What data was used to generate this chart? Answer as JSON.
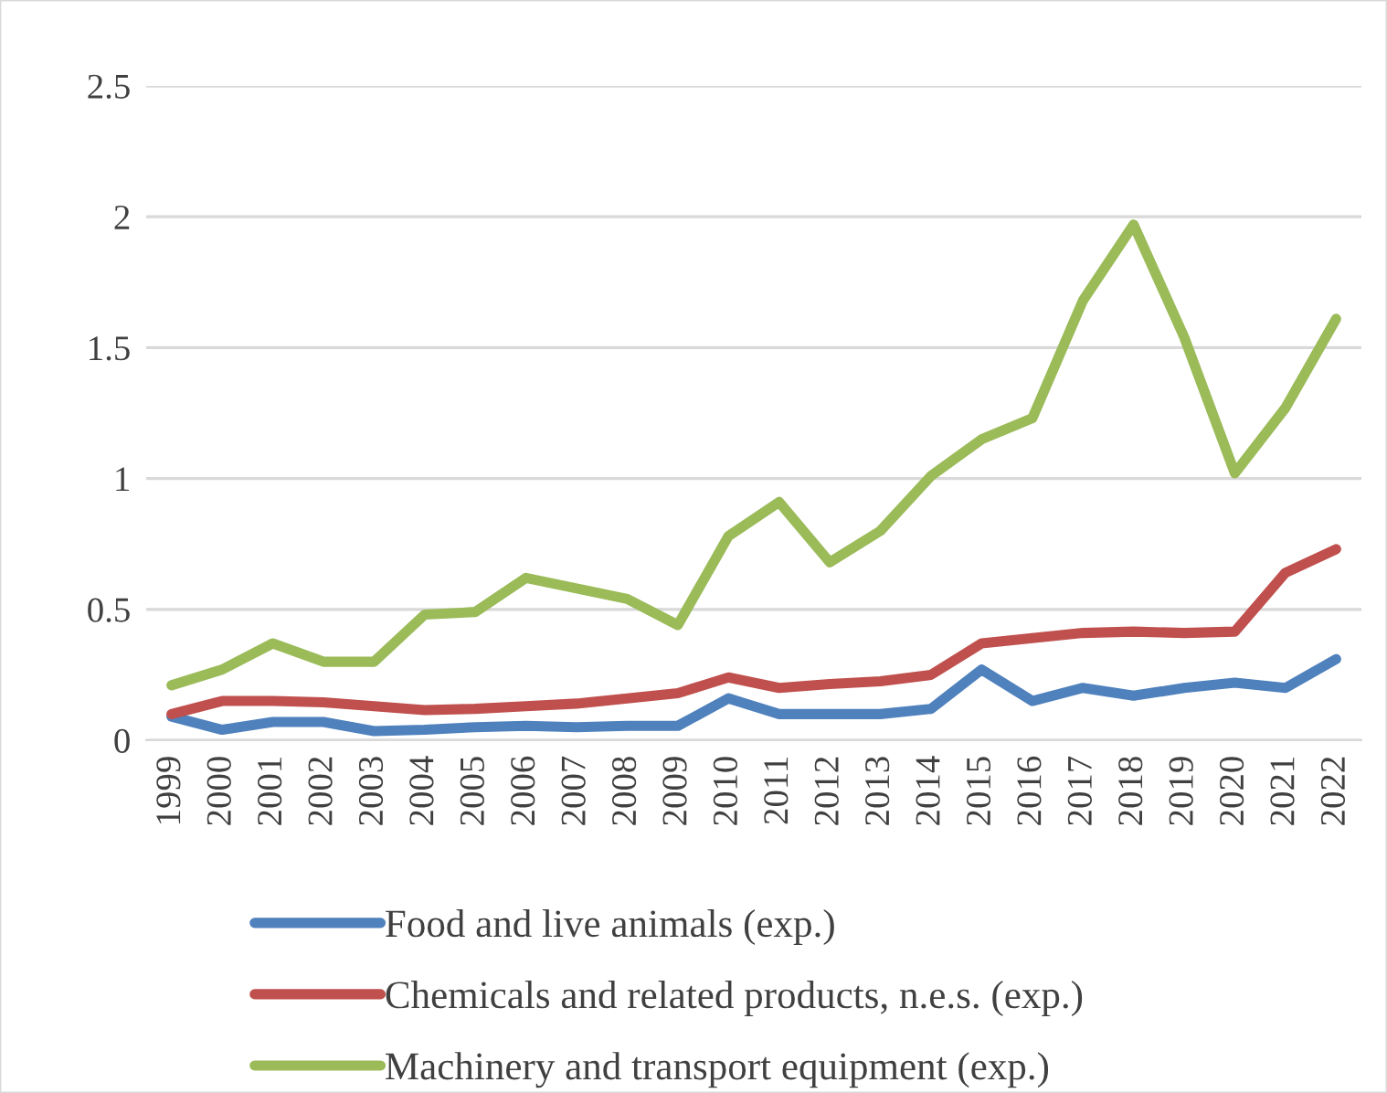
{
  "chart_data": {
    "type": "line",
    "categories": [
      "1999",
      "2000",
      "2001",
      "2002",
      "2003",
      "2004",
      "2005",
      "2006",
      "2007",
      "2008",
      "2009",
      "2010",
      "2011",
      "2012",
      "2013",
      "2014",
      "2015",
      "2016",
      "2017",
      "2018",
      "2019",
      "2020",
      "2021",
      "2022"
    ],
    "series": [
      {
        "name": "Food and live animals (exp.)",
        "color": "#4f81bd",
        "values": [
          0.09,
          0.04,
          0.07,
          0.07,
          0.035,
          0.04,
          0.05,
          0.055,
          0.05,
          0.055,
          0.055,
          0.16,
          0.1,
          0.1,
          0.1,
          0.12,
          0.27,
          0.15,
          0.2,
          0.17,
          0.2,
          0.22,
          0.2,
          0.31
        ]
      },
      {
        "name": "Chemicals and related products, n.e.s. (exp.)",
        "color": "#c0504d",
        "values": [
          0.1,
          0.15,
          0.15,
          0.145,
          0.13,
          0.115,
          0.12,
          0.13,
          0.14,
          0.16,
          0.18,
          0.24,
          0.2,
          0.215,
          0.225,
          0.25,
          0.37,
          0.39,
          0.41,
          0.415,
          0.41,
          0.415,
          0.64,
          0.73
        ]
      },
      {
        "name": "Machinery and transport equipment (exp.)",
        "color": "#9bbb59",
        "values": [
          0.21,
          0.27,
          0.37,
          0.3,
          0.3,
          0.48,
          0.49,
          0.62,
          0.58,
          0.54,
          0.44,
          0.78,
          0.91,
          0.68,
          0.8,
          1.01,
          1.15,
          1.23,
          1.68,
          1.97,
          1.54,
          1.02,
          1.27,
          1.61
        ]
      }
    ],
    "ylim": [
      0,
      2.5
    ],
    "yticks": [
      0,
      0.5,
      1,
      1.5,
      2,
      2.5
    ],
    "grid": "y",
    "legend": "bottom",
    "line_style": "solid",
    "marker": "none"
  }
}
